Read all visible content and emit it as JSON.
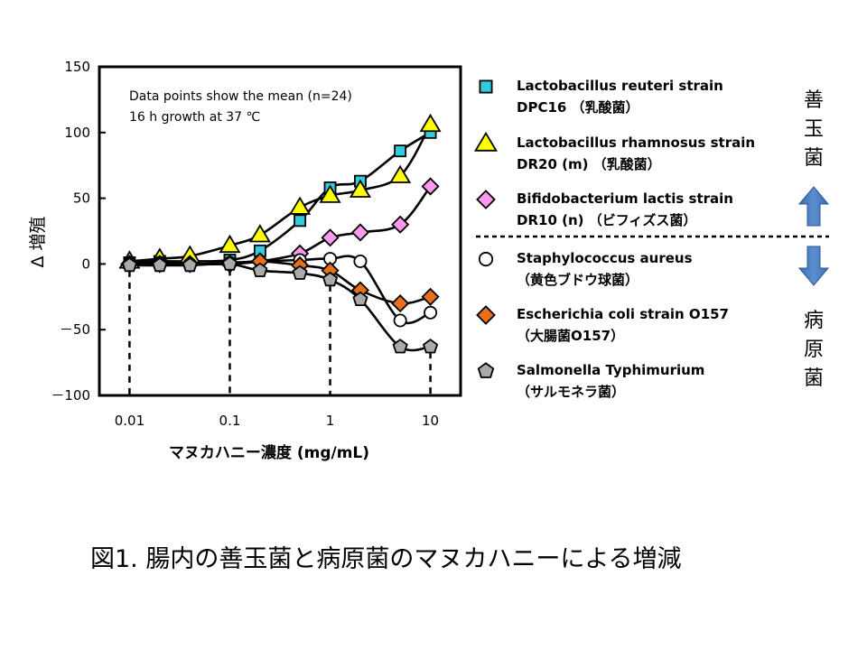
{
  "figure": {
    "caption": "図1.  腸内の善玉菌と病原菌のマヌカハニーによる増減",
    "annotation_line1": "Data points show the mean (n=24)",
    "annotation_line2": "16 h growth at 37 ℃",
    "good_bacteria_label": "善玉菌",
    "pathogen_label": "病原菌",
    "guide_lines_at_x": [
      0.01,
      0.1,
      1,
      10
    ]
  },
  "chart_data": {
    "type": "line",
    "xscale": "log",
    "xlabel": "マヌカハニー濃度 (mg/mL)",
    "ylabel": "Δ 増殖",
    "xlim": [
      0.005,
      20
    ],
    "ylim": [
      -100,
      150
    ],
    "x_ticks": [
      {
        "value": 0.01,
        "label": "0.01"
      },
      {
        "value": 0.1,
        "label": "0.1"
      },
      {
        "value": 1,
        "label": "1"
      },
      {
        "value": 10,
        "label": "10"
      }
    ],
    "y_ticks": [
      {
        "value": 150,
        "label": "150"
      },
      {
        "value": 100,
        "label": "100"
      },
      {
        "value": 50,
        "label": "50"
      },
      {
        "value": 0,
        "label": "0"
      },
      {
        "value": -50,
        "label": "－50"
      },
      {
        "value": -100,
        "label": "－100"
      }
    ],
    "grid": false,
    "legend_position": "right",
    "x": [
      0.01,
      0.02,
      0.04,
      0.1,
      0.2,
      0.5,
      1,
      2,
      5,
      10
    ],
    "series": [
      {
        "name_line1": "Lactobacillus reuteri strain",
        "name_line2": "DPC16 （乳酸菌）",
        "marker": "square",
        "color": "#33ccdd",
        "values": [
          1,
          2,
          2,
          3,
          10,
          33,
          58,
          63,
          86,
          100
        ]
      },
      {
        "name_line1": "Lactobacillus rhamnosus strain",
        "name_line2": "DR20 (m) （乳酸菌）",
        "marker": "triangle",
        "color": "#ffff00",
        "values": [
          2,
          4,
          6,
          14,
          22,
          43,
          52,
          56,
          67,
          106
        ]
      },
      {
        "name_line1": "Bifidobacterium lactis strain",
        "name_line2": " DR10 (n) （ビフィズス菌）",
        "marker": "diamond",
        "color": "#ff99ee",
        "values": [
          0,
          0,
          0,
          0,
          2,
          8,
          20,
          24,
          30,
          59
        ]
      },
      {
        "name_line1": "Staphylococcus aureus",
        "name_line2": "（黄色ブドウ球菌）",
        "marker": "circle",
        "color": "#ffffff",
        "values": [
          0,
          1,
          0,
          1,
          2,
          3,
          4,
          2,
          -43,
          -37
        ]
      },
      {
        "name_line1": "Escherichia coli strain O157",
        "name_line2": "（大腸菌O157）",
        "marker": "diamond",
        "color": "#e8701a",
        "values": [
          0,
          0,
          0,
          0,
          2,
          -1,
          -5,
          -20,
          -30,
          -25
        ]
      },
      {
        "name_line1": "Salmonella Typhimurium",
        "name_line2": "（サルモネラ菌）",
        "marker": "pentagon",
        "color": "#aaaaaa",
        "values": [
          -1,
          -1,
          -1,
          0,
          -5,
          -7,
          -12,
          -27,
          -63,
          -63
        ]
      }
    ]
  }
}
